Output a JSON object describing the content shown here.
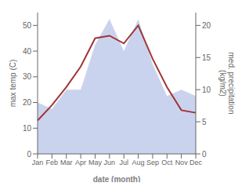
{
  "chart_data": {
    "type": "line",
    "categories": [
      "Jan",
      "Feb",
      "Mar",
      "Apr",
      "May",
      "Jun",
      "Jul",
      "Aug",
      "Sep",
      "Oct",
      "Nov",
      "Dec"
    ],
    "xlabel": "date (month)",
    "ylabel": "max temp (C)",
    "y2label": "med. precipitation\n(kg/m2)",
    "ylim": [
      0,
      55
    ],
    "yticks": [
      0,
      10,
      20,
      30,
      40,
      50
    ],
    "y2lim": [
      0,
      22
    ],
    "y2ticks": [
      0,
      5,
      10,
      15,
      20
    ],
    "grid": false,
    "series": [
      {
        "type": "area",
        "axis": "y2",
        "color": "#b8c4e8",
        "values": [
          8,
          7,
          10,
          10,
          17,
          21,
          16,
          21,
          14,
          9,
          10,
          9
        ]
      },
      {
        "type": "line",
        "color": "#a03535",
        "values": [
          13,
          19,
          26,
          34,
          45,
          46,
          43,
          50,
          37,
          26,
          17,
          16
        ]
      }
    ]
  }
}
